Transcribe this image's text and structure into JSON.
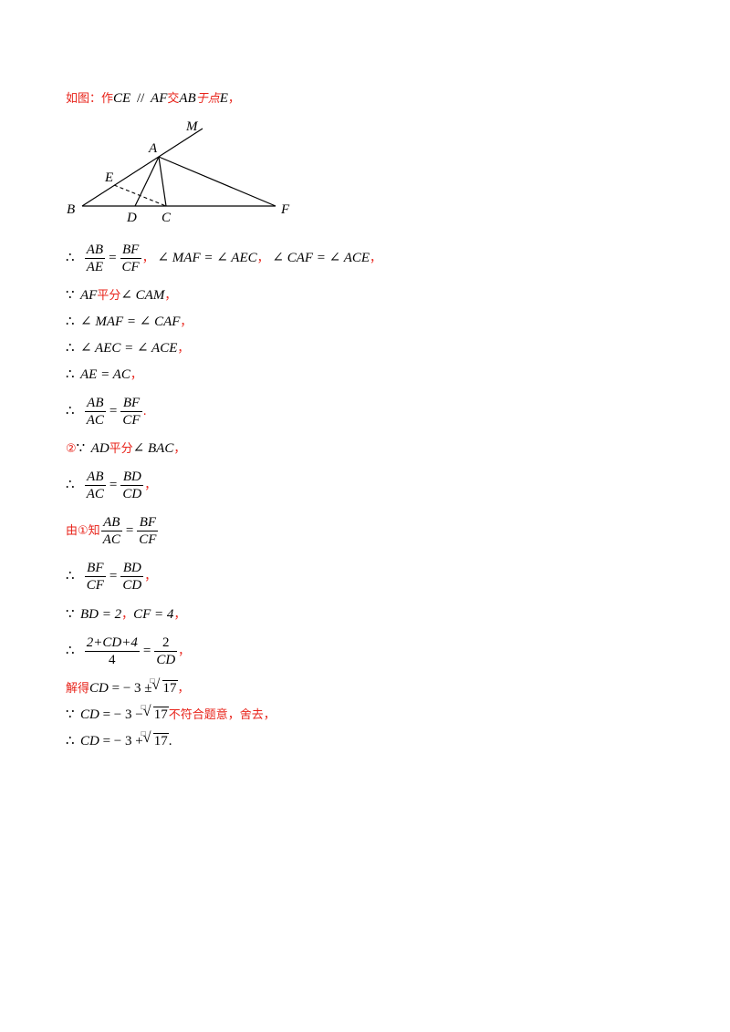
{
  "line1": {
    "prefix": "如图：作",
    "m1": "CE",
    "par": "//",
    "m2": "AF",
    "t2": "交",
    "m3": "AB",
    "t3": "于点",
    "m4": "E",
    "t4": "，"
  },
  "figure": {
    "M": "M",
    "A": "A",
    "E": "E",
    "B": "B",
    "D": "D",
    "C": "C",
    "F": "F"
  },
  "line2": {
    "therefore": "∴",
    "f1n": "AB",
    "f1d": "AE",
    "eq": "=",
    "f2n": "BF",
    "f2d": "CF",
    "c1": "，",
    "a1": "∠ MAF = ∠ AEC",
    "c2": "，",
    "a2": "∠ CAF = ∠ ACE",
    "c3": "，"
  },
  "line3": {
    "because": "∵",
    "m1": "AF",
    "t1": "平分",
    "m2": "∠ CAM",
    "c": "，"
  },
  "line4": {
    "therefore": "∴",
    "m": "∠ MAF = ∠ CAF",
    "c": "，"
  },
  "line5": {
    "therefore": "∴",
    "m": "∠ AEC = ∠ ACE",
    "c": "，"
  },
  "line6": {
    "therefore": "∴",
    "m": "AE = AC",
    "c": "，"
  },
  "line7": {
    "therefore": "∴",
    "f1n": "AB",
    "f1d": "AC",
    "eq": "=",
    "f2n": "BF",
    "f2d": "CF",
    "p": "."
  },
  "line8": {
    "circ": "②",
    "because": "∵",
    "m1": "AD",
    "t1": "平分",
    "m2": "∠ BAC",
    "c": "，"
  },
  "line9": {
    "therefore": "∴",
    "f1n": "AB",
    "f1d": "AC",
    "eq": "=",
    "f2n": "BD",
    "f2d": "CD",
    "c": "，"
  },
  "line10": {
    "t": "由①知",
    "f1n": "AB",
    "f1d": "AC",
    "eq": "=",
    "f2n": "BF",
    "f2d": "CF"
  },
  "line11": {
    "therefore": "∴",
    "f1n": "BF",
    "f1d": "CF",
    "eq": "=",
    "f2n": "BD",
    "f2d": "CD",
    "c": "，"
  },
  "line12": {
    "because": "∵",
    "m1": "BD = 2",
    "c1": "，",
    "m2": "CF = 4",
    "c2": "，"
  },
  "line13": {
    "therefore": "∴",
    "f1n": "2+CD+4",
    "f1d": "4",
    "eq": "=",
    "f2n": "2",
    "f2d": "CD",
    "c": "，"
  },
  "line14": {
    "t": "解得",
    "m": "CD",
    "rest": " =  − 3 ±",
    "idx": "□",
    "rad": "17",
    "c": "，"
  },
  "line15": {
    "because": "∵",
    "m": "CD",
    "rest": " =  − 3 −",
    "idx": "□",
    "rad": "17",
    "t": "不符合题意，舍去，"
  },
  "line16": {
    "therefore": "∴",
    "m": "CD",
    "rest": " =  − 3 +",
    "idx": "□",
    "rad": "17",
    "p": "."
  }
}
